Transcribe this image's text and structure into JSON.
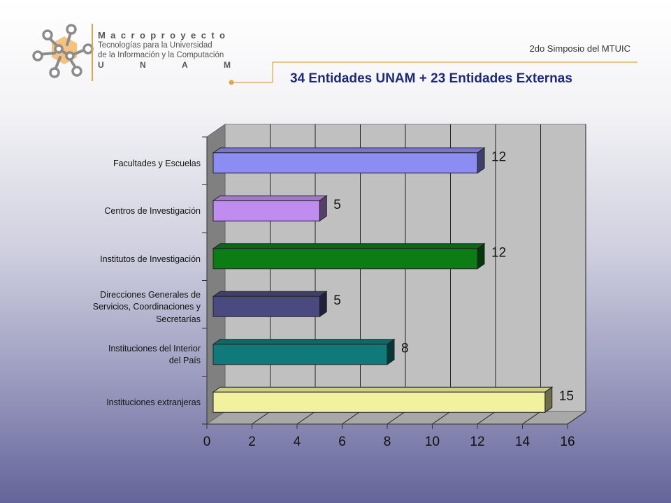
{
  "logo": {
    "name": "Macroproyecto",
    "line1": "Tecnologías para la Universidad",
    "line2": "de la Información y la Computación",
    "unam": [
      "U",
      "N",
      "A",
      "M"
    ]
  },
  "header": {
    "symposium": "2do Simposio del MTUIC",
    "title": "34 Entidades UNAM + 23 Entidades Externas"
  },
  "colors": {
    "accent": "#e0a44a",
    "title": "#1e2a78"
  },
  "chart_data": {
    "type": "bar",
    "orientation": "horizontal",
    "style": "3d",
    "categories": [
      "Facultades y Escuelas",
      "Centros de Investigación",
      "Institutos de Investigación",
      "Direcciones Generales de\nServicios, Coordinaciones y\nSecretarías",
      "Instituciones del Interior\ndel País",
      "Instituciones extranjeras"
    ],
    "values": [
      12,
      5,
      12,
      5,
      8,
      15
    ],
    "colors": [
      "#8c8cf2",
      "#c08cf0",
      "#0b7d14",
      "#4a4a80",
      "#107a7a",
      "#f2f29e"
    ],
    "xlim": [
      0,
      16
    ],
    "xticks": [
      0,
      2,
      4,
      6,
      8,
      10,
      12,
      14,
      16
    ],
    "grid": true,
    "data_labels": true
  }
}
